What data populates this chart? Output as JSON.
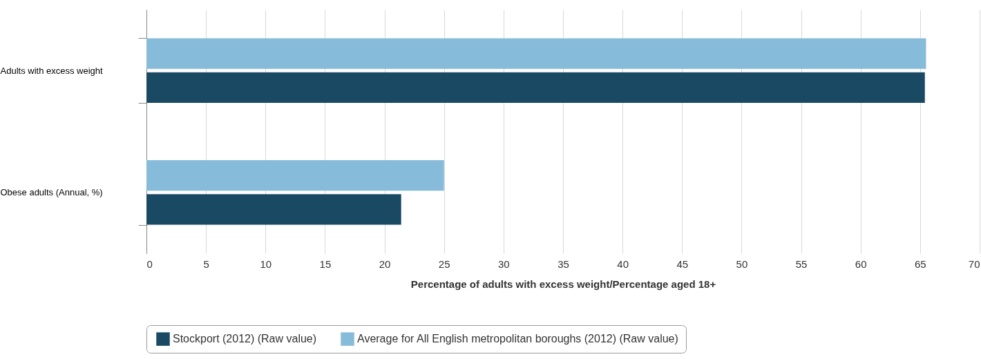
{
  "chart_data": {
    "type": "bar",
    "orientation": "horizontal",
    "xlabel": "Percentage of adults with excess weight/Percentage aged 18+",
    "categories": [
      "Adults with excess weight",
      "Obese adults (Annual, %)"
    ],
    "series": [
      {
        "name": "Stockport (2012) (Raw value)",
        "color": "#1a4a63",
        "values": [
          65.4,
          21.4
        ]
      },
      {
        "name": "Average for All English metropolitan boroughs (2012) (Raw value)",
        "color": "#86bbd9",
        "values": [
          65.5,
          25.0
        ]
      }
    ],
    "xlim": [
      0,
      70
    ],
    "xticks": [
      0,
      5,
      10,
      15,
      20,
      25,
      30,
      35,
      40,
      45,
      50,
      55,
      60,
      65,
      70
    ],
    "grid": "x",
    "legend": "bottom"
  }
}
